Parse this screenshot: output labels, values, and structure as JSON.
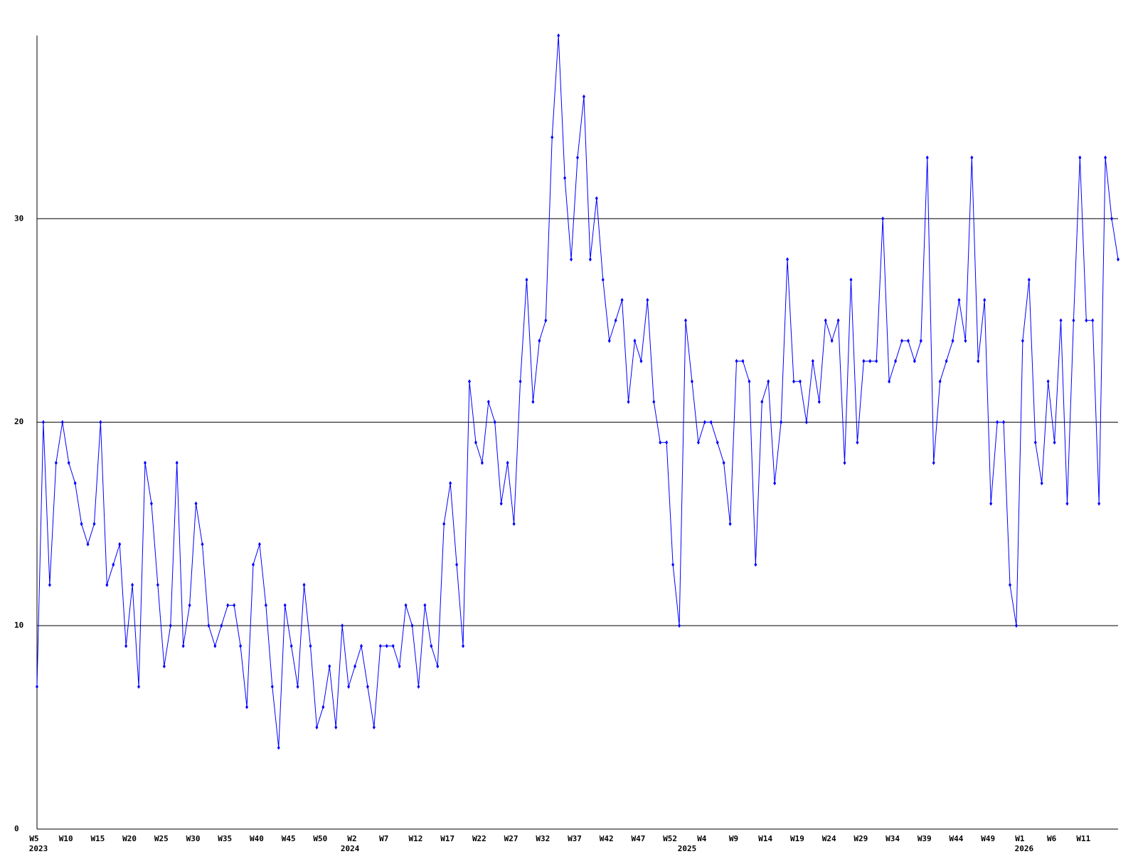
{
  "chart_data": {
    "type": "line",
    "categories": [
      "W5",
      null,
      null,
      null,
      null,
      "W10",
      null,
      null,
      null,
      null,
      "W15",
      null,
      null,
      null,
      null,
      "W20",
      null,
      null,
      null,
      null,
      "W25",
      null,
      null,
      null,
      null,
      "W30",
      null,
      null,
      null,
      null,
      "W35",
      null,
      null,
      null,
      null,
      "W40",
      null,
      null,
      null,
      null,
      "W45",
      null,
      null,
      null,
      null,
      "W50",
      null,
      null,
      null,
      null,
      "W2",
      null,
      null,
      null,
      null,
      "W7",
      null,
      null,
      null,
      null,
      "W12",
      null,
      null,
      null,
      null,
      "W17",
      null,
      null,
      null,
      null,
      "W22",
      null,
      null,
      null,
      null,
      "W27",
      null,
      null,
      null,
      null,
      "W32",
      null,
      null,
      null,
      null,
      "W37",
      null,
      null,
      null,
      null,
      "W42",
      null,
      null,
      null,
      null,
      "W47",
      null,
      null,
      null,
      null,
      "W52",
      null,
      null,
      null,
      null,
      "W4",
      null,
      null,
      null,
      null,
      "W9",
      null,
      null,
      null,
      null,
      "W14",
      null,
      null,
      null,
      null,
      "W19",
      null,
      null,
      null,
      null,
      "W24",
      null,
      null,
      null,
      null,
      "W29",
      null,
      null,
      null,
      null,
      "W34",
      null,
      null,
      null,
      null,
      "W39",
      null,
      null,
      null,
      null,
      "W44",
      null,
      null,
      null,
      null,
      "W49",
      null,
      null,
      null,
      null,
      "W1",
      null,
      null,
      null,
      null,
      "W6",
      null,
      null,
      null,
      null,
      "W11",
      null,
      null,
      null,
      null,
      null
    ],
    "year_labels": [
      {
        "index": 0,
        "label": "2023"
      },
      {
        "index": 49,
        "label": "2024"
      },
      {
        "index": 102,
        "label": "2025"
      },
      {
        "index": 155,
        "label": "2026"
      }
    ],
    "values": [
      7,
      20,
      12,
      18,
      20,
      18,
      17,
      15,
      14,
      15,
      20,
      12,
      13,
      14,
      9,
      12,
      7,
      18,
      16,
      12,
      8,
      10,
      18,
      9,
      11,
      16,
      14,
      10,
      9,
      10,
      11,
      11,
      9,
      6,
      13,
      14,
      11,
      7,
      4,
      11,
      9,
      7,
      12,
      9,
      5,
      6,
      8,
      5,
      10,
      7,
      8,
      9,
      7,
      5,
      9,
      9,
      9,
      8,
      11,
      10,
      7,
      11,
      9,
      8,
      15,
      17,
      13,
      9,
      22,
      19,
      18,
      21,
      20,
      16,
      18,
      15,
      22,
      27,
      21,
      24,
      25,
      34,
      39,
      32,
      28,
      33,
      36,
      28,
      31,
      27,
      24,
      25,
      26,
      21,
      24,
      23,
      26,
      21,
      19,
      19,
      13,
      10,
      25,
      22,
      19,
      20,
      20,
      19,
      18,
      15,
      23,
      23,
      22,
      13,
      21,
      22,
      17,
      20,
      28,
      22,
      22,
      20,
      23,
      21,
      25,
      24,
      25,
      18,
      27,
      19,
      23,
      23,
      23,
      30,
      22,
      23,
      24,
      24,
      23,
      24,
      33,
      18,
      22,
      23,
      24,
      26,
      24,
      33,
      23,
      26,
      16,
      20,
      20,
      12,
      10,
      24,
      27,
      19,
      17,
      22,
      19,
      25,
      16,
      25,
      33,
      25,
      25,
      16,
      33,
      30,
      28
    ],
    "color": "#0000ff",
    "ylim": [
      0,
      39
    ],
    "yticks": [
      0,
      10,
      20,
      30
    ],
    "grid": true
  }
}
